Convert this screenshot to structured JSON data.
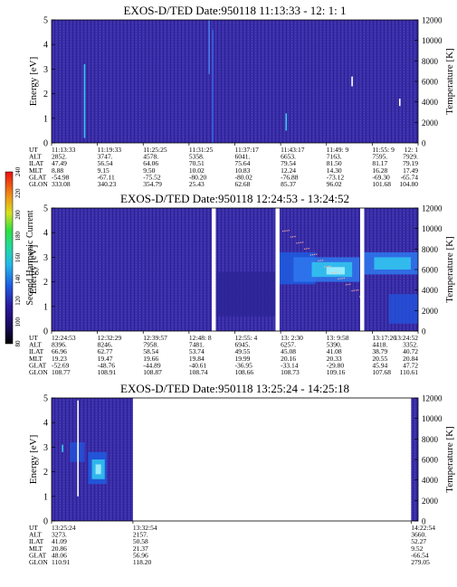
{
  "colors": {
    "background": "#3b2fa8",
    "stripe": "#2d1f90",
    "spectrogram_low": "#2a1a8c",
    "spectrogram_mid": "#1f5ce0",
    "spectrogram_high": "#33c8ee",
    "spectrogram_peak": "#aaf2ff"
  },
  "chart_data": [
    {
      "type": "heatmap",
      "title": "EXOS-D/TED   Date:950118   11:13:33 - 12: 1: 1",
      "ylabel": "Energy [eV]",
      "y2label": "Temperature [K]",
      "ylim": [
        0,
        5
      ],
      "y2lim": [
        0,
        12000
      ],
      "yticks": [
        "0",
        "1",
        "2",
        "3",
        "4",
        "5"
      ],
      "y2ticks": [
        "0",
        "2000",
        "4000",
        "6000",
        "8000",
        "10000",
        "12000"
      ],
      "gaps": [],
      "features": [
        {
          "kind": "vline",
          "x": 0.09,
          "e0": 0.2,
          "e1": 3.2,
          "color": "#33c8ee"
        },
        {
          "kind": "vline",
          "x": 0.43,
          "e0": 2.8,
          "e1": 5.0,
          "color": "#4a78e8"
        },
        {
          "kind": "vline",
          "x": 0.44,
          "e0": 0.0,
          "e1": 4.6,
          "color": "#3a62e0"
        },
        {
          "kind": "vline",
          "x": 0.64,
          "e0": 0.5,
          "e1": 1.2,
          "color": "#33c8ee"
        },
        {
          "kind": "vline",
          "x": 0.82,
          "e0": 2.3,
          "e1": 2.7,
          "color": "#ffffff"
        },
        {
          "kind": "vline",
          "x": 0.95,
          "e0": 1.5,
          "e1": 1.8,
          "color": "#ffffff"
        }
      ],
      "table": {
        "labels": [
          "UT",
          "ALT",
          "ILAT",
          "MLT",
          "GLAT",
          "GLON"
        ],
        "columns": [
          {
            "x": 0.0,
            "values": [
              "11:13:33",
              "2852.",
              "47.49",
              "8.88",
              "-54.98",
              "333.08"
            ]
          },
          {
            "x": 0.125,
            "values": [
              "11:19:33",
              "3747.",
              "56.54",
              "9.15",
              "-67.11",
              "340.23"
            ]
          },
          {
            "x": 0.25,
            "values": [
              "11:25:25",
              "4578.",
              "64.06",
              "9.50",
              "-75.52",
              "354.79"
            ]
          },
          {
            "x": 0.375,
            "values": [
              "11:31:25",
              "5358.",
              "70.51",
              "10.02",
              "-80.20",
              "25.43"
            ]
          },
          {
            "x": 0.5,
            "values": [
              "11:37:17",
              "6041.",
              "75.64",
              "10.83",
              "-80.02",
              "62.68"
            ]
          },
          {
            "x": 0.625,
            "values": [
              "11:43:17",
              "6653.",
              "79.54",
              "12.24",
              "-76.88",
              "85.37"
            ]
          },
          {
            "x": 0.75,
            "values": [
              "11:49: 9",
              "7163.",
              "81.50",
              "14.30",
              "-73.12",
              "96.02"
            ]
          },
          {
            "x": 0.875,
            "values": [
              "11:55: 9",
              "7595.",
              "81.17",
              "16.28",
              "-69.30",
              "101.68"
            ]
          },
          {
            "x": 1.0,
            "values": [
              "12: 1",
              "7929.",
              "79.19",
              "17.49",
              "-65.74",
              "104.80"
            ]
          }
        ]
      }
    },
    {
      "type": "heatmap",
      "title": "EXOS-D/TED   Date:950118   12:24:53 - 13:24:52",
      "ylabel": "Energy [eV]",
      "y2label": "Temperature [K]",
      "ylim": [
        0,
        5
      ],
      "y2lim": [
        0,
        12000
      ],
      "yticks": [
        "0",
        "1",
        "2",
        "3",
        "4",
        "5"
      ],
      "y2ticks": [
        "0",
        "2000",
        "4000",
        "6000",
        "8000",
        "10000",
        "12000"
      ],
      "gaps": [
        [
          0.437,
          0.448
        ],
        [
          0.611,
          0.622
        ],
        [
          0.842,
          0.853
        ]
      ],
      "features": [
        {
          "kind": "band",
          "x0": 0.62,
          "x1": 0.72,
          "e0": 1.9,
          "e1": 3.2,
          "color": "#1f5ce0"
        },
        {
          "kind": "band",
          "x0": 0.66,
          "x1": 0.84,
          "e0": 2.0,
          "e1": 3.0,
          "color": "#2f78ee"
        },
        {
          "kind": "band",
          "x0": 0.71,
          "x1": 0.82,
          "e0": 2.2,
          "e1": 2.8,
          "color": "#33c8ee"
        },
        {
          "kind": "band",
          "x0": 0.75,
          "x1": 0.8,
          "e0": 2.3,
          "e1": 2.6,
          "color": "#aaf2ff"
        },
        {
          "kind": "band",
          "x0": 0.853,
          "x1": 1.0,
          "e0": 2.3,
          "e1": 3.2,
          "color": "#2f78ee"
        },
        {
          "kind": "band",
          "x0": 0.88,
          "x1": 0.98,
          "e0": 2.5,
          "e1": 3.0,
          "color": "#33c8ee"
        },
        {
          "kind": "band",
          "x0": 0.92,
          "x1": 1.0,
          "e0": 0.3,
          "e1": 1.5,
          "color": "#2450d8"
        },
        {
          "kind": "band",
          "x0": 0.45,
          "x1": 0.61,
          "e0": 0.6,
          "e1": 2.4,
          "color": "#2d2496"
        },
        {
          "kind": "dots",
          "x0": 0.63,
          "x1": 0.84,
          "e0": 4.2,
          "e1": 1.5,
          "color": "#ffb0a0"
        }
      ],
      "table": {
        "labels": [
          "UT",
          "ALT",
          "ILAT",
          "MLT",
          "GLAT",
          "GLON"
        ],
        "columns": [
          {
            "x": 0.0,
            "values": [
              "12:24:53",
              "8396.",
              "66.96",
              "19.23",
              "-52.69",
              "108.77"
            ]
          },
          {
            "x": 0.125,
            "values": [
              "12:32:29",
              "8246.",
              "62.77",
              "19.47",
              "-48.76",
              "108.91"
            ]
          },
          {
            "x": 0.25,
            "values": [
              "12:39:57",
              "7958.",
              "58.54",
              "19.66",
              "-44.89",
              "108.87"
            ]
          },
          {
            "x": 0.375,
            "values": [
              "12:48: 8",
              "7481.",
              "53.74",
              "19.84",
              "-40.61",
              "108.74"
            ]
          },
          {
            "x": 0.5,
            "values": [
              "12:55: 4",
              "6945.",
              "49.55",
              "19.99",
              "-36.95",
              "108.66"
            ]
          },
          {
            "x": 0.625,
            "values": [
              "13: 2:30",
              "6257.",
              "45.08",
              "20.16",
              "-33.14",
              "108.73"
            ]
          },
          {
            "x": 0.75,
            "values": [
              "13: 9:58",
              "5390.",
              "41.08",
              "20.33",
              "-29.80",
              "109.16"
            ]
          },
          {
            "x": 0.875,
            "values": [
              "13:17:26",
              "4418.",
              "38.79",
              "20.55",
              "45.94",
              "107.68"
            ]
          },
          {
            "x": 1.0,
            "values": [
              "13:24:52",
              "3352.",
              "40.72",
              "20.84",
              "47.72",
              "110.61"
            ]
          }
        ]
      }
    },
    {
      "type": "heatmap",
      "title": "EXOS-D/TED   Date:950118   13:25:24 - 14:25:18",
      "ylabel": "Energy [eV]",
      "y2label": "Temperature [K]",
      "ylim": [
        0,
        5
      ],
      "y2lim": [
        0,
        12000
      ],
      "yticks": [
        "0",
        "1",
        "2",
        "3",
        "4",
        "5"
      ],
      "y2ticks": [
        "0",
        "2000",
        "4000",
        "6000",
        "8000",
        "10000",
        "12000"
      ],
      "data_extent": [
        [
          0.0,
          0.222
        ],
        [
          0.981,
          1.0
        ]
      ],
      "gaps": [],
      "features": [
        {
          "kind": "band",
          "x0": 0.1,
          "x1": 0.15,
          "e0": 1.5,
          "e1": 2.8,
          "color": "#1f5ce0"
        },
        {
          "kind": "band",
          "x0": 0.11,
          "x1": 0.145,
          "e0": 1.7,
          "e1": 2.5,
          "color": "#33c8ee"
        },
        {
          "kind": "band",
          "x0": 0.12,
          "x1": 0.135,
          "e0": 1.9,
          "e1": 2.3,
          "color": "#aaf2ff"
        },
        {
          "kind": "band",
          "x0": 0.05,
          "x1": 0.09,
          "e0": 2.4,
          "e1": 3.2,
          "color": "#2450d8"
        },
        {
          "kind": "vline",
          "x": 0.072,
          "e0": 1.0,
          "e1": 4.9,
          "color": "#ffffff"
        },
        {
          "kind": "vline",
          "x": 0.03,
          "e0": 2.8,
          "e1": 3.1,
          "color": "#33c8ee"
        }
      ],
      "table": {
        "labels": [
          "UT",
          "ALT",
          "ILAT",
          "MLT",
          "GLAT",
          "GLON"
        ],
        "columns": [
          {
            "x": 0.0,
            "values": [
              "13:25:24",
              "3273.",
              "41.09",
              "20.86",
              "48.06",
              "110.91"
            ]
          },
          {
            "x": 0.222,
            "values": [
              "13:32:54",
              "2157.",
              "50.58",
              "21.37",
              "56.96",
              "118.20"
            ]
          },
          {
            "x": 0.981,
            "values": [
              "14:22:54",
              "3660.",
              "52.27",
              "9.52",
              "-66.54",
              "279.05"
            ]
          }
        ]
      }
    }
  ],
  "colorbar": {
    "label": "Second Harmonic Current",
    "ticks": [
      "80",
      "100",
      "120",
      "140",
      "160",
      "180",
      "200",
      "220",
      "240"
    ],
    "vmin": 80,
    "vmax": 240
  }
}
